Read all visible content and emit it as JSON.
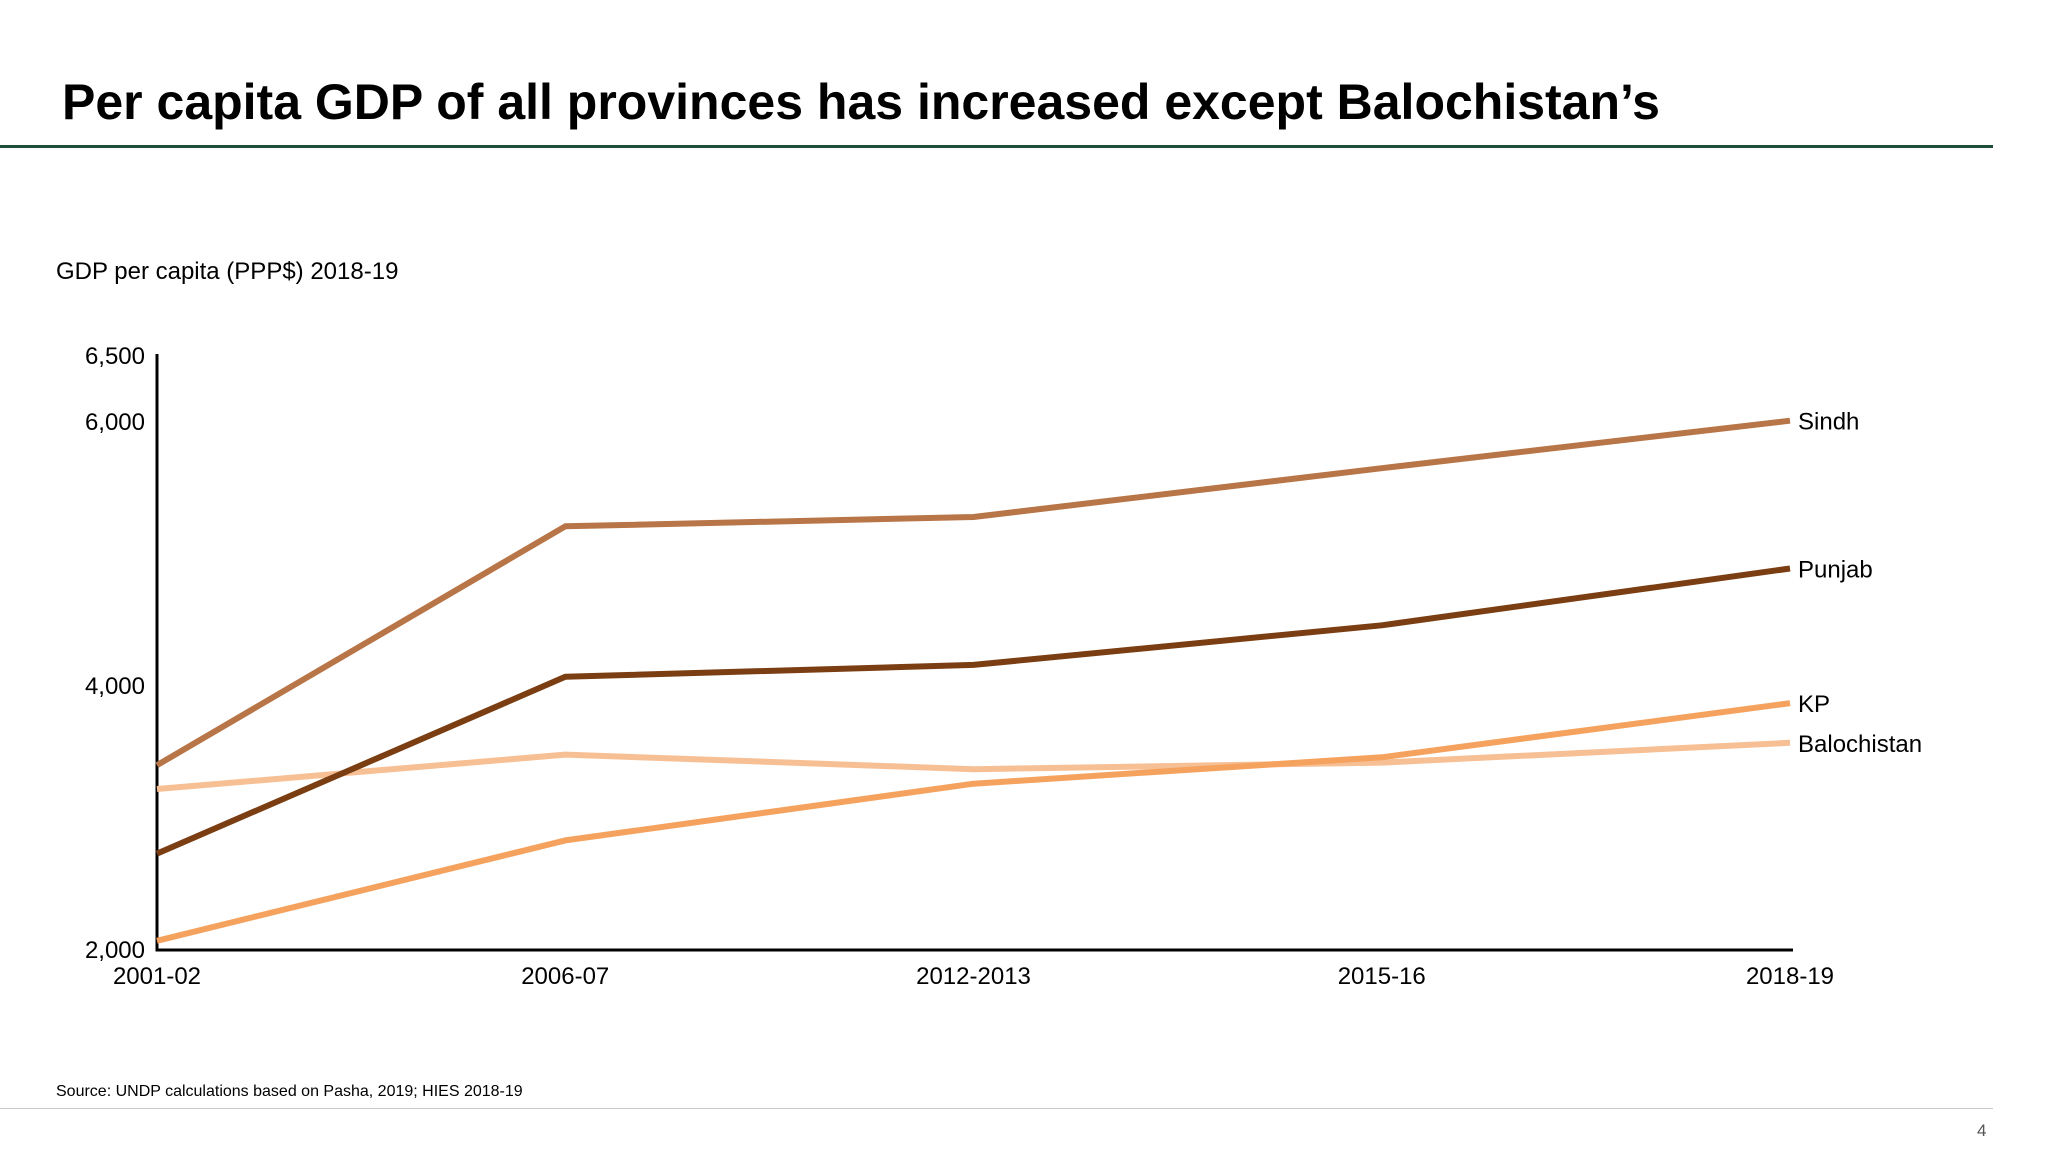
{
  "slide": {
    "title": "Per capita GDP of all provinces has increased except Balochistan’s",
    "source": "Source: UNDP calculations based on Pasha, 2019; HIES 2018-19",
    "page_number": "4"
  },
  "colors": {
    "title_rule": "#1f4d3a",
    "axis": "#000000"
  },
  "chart_data": {
    "type": "line",
    "title": "GDP per capita (PPP$) 2018-19",
    "xlabel": "",
    "ylabel": "",
    "categories": [
      "2001-02",
      "2006-07",
      "2012-2013",
      "2015-16",
      "2018-19"
    ],
    "ylim": [
      2000,
      6500
    ],
    "yticks": [
      2000,
      4000,
      6000,
      6500
    ],
    "ytick_labels": [
      "2,000",
      "4,000",
      "6,000",
      "6,500"
    ],
    "grid": false,
    "legend": "end-of-line labels",
    "series": [
      {
        "name": "Sindh",
        "color": "#b87547",
        "values": [
          3400,
          5210,
          5280,
          5650,
          6010
        ]
      },
      {
        "name": "Punjab",
        "color": "#7a3e12",
        "values": [
          2730,
          4070,
          4160,
          4460,
          4890
        ]
      },
      {
        "name": "KP",
        "color": "#f5a25f",
        "values": [
          2070,
          2830,
          3260,
          3460,
          3870
        ]
      },
      {
        "name": "Balochistan",
        "color": "#f7bf94",
        "values": [
          3220,
          3480,
          3370,
          3420,
          3570
        ]
      }
    ]
  }
}
